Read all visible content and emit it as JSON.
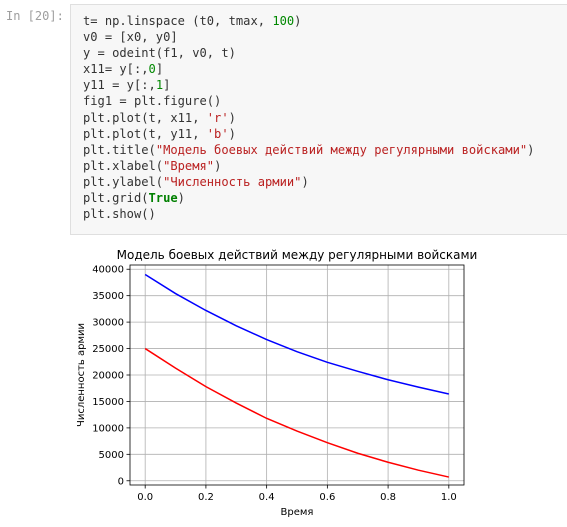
{
  "cell": {
    "prompt": "In [20]:",
    "lines": [
      [
        {
          "t": "t= np.linspace (t0, tmax, "
        },
        {
          "t": "100",
          "c": "num"
        },
        {
          "t": ")"
        }
      ],
      [
        {
          "t": "v0 = [x0, y0]"
        }
      ],
      [
        {
          "t": "y = odeint(f1, v0, t)"
        }
      ],
      [
        {
          "t": "x11= y[:,"
        },
        {
          "t": "0",
          "c": "num"
        },
        {
          "t": "]"
        }
      ],
      [
        {
          "t": "y11 = y[:,"
        },
        {
          "t": "1",
          "c": "num"
        },
        {
          "t": "]"
        }
      ],
      [
        {
          "t": "fig1 = plt.figure()"
        }
      ],
      [
        {
          "t": "plt.plot(t, x11, "
        },
        {
          "t": "'r'",
          "c": "str"
        },
        {
          "t": ")"
        }
      ],
      [
        {
          "t": "plt.plot(t, y11, "
        },
        {
          "t": "'b'",
          "c": "str"
        },
        {
          "t": ")"
        }
      ],
      [
        {
          "t": "plt.title("
        },
        {
          "t": "\"Модель боевых действий между регулярными войсками\"",
          "c": "str"
        },
        {
          "t": ")"
        }
      ],
      [
        {
          "t": "plt.xlabel("
        },
        {
          "t": "\"Время\"",
          "c": "str"
        },
        {
          "t": ")"
        }
      ],
      [
        {
          "t": "plt.ylabel("
        },
        {
          "t": "\"Численность армии\"",
          "c": "str"
        },
        {
          "t": ")"
        }
      ],
      [
        {
          "t": "plt.grid("
        },
        {
          "t": "True",
          "c": "kw"
        },
        {
          "t": ")"
        }
      ],
      [
        {
          "t": "plt.show()"
        }
      ]
    ]
  },
  "chart_data": {
    "type": "line",
    "title": "Модель боевых действий между регулярными войсками",
    "xlabel": "Время",
    "ylabel": "Численность армии",
    "xlim": [
      -0.05,
      1.05
    ],
    "ylim": [
      -800,
      40800
    ],
    "xticks": [
      "0.0",
      "0.2",
      "0.4",
      "0.6",
      "0.8",
      "1.0"
    ],
    "xtick_values": [
      0,
      0.2,
      0.4,
      0.6,
      0.8,
      1.0
    ],
    "yticks": [
      "0",
      "5000",
      "10000",
      "15000",
      "20000",
      "25000",
      "30000",
      "35000",
      "40000"
    ],
    "ytick_values": [
      0,
      5000,
      10000,
      15000,
      20000,
      25000,
      30000,
      35000,
      40000
    ],
    "grid": true,
    "x": [
      0,
      0.1,
      0.2,
      0.3,
      0.4,
      0.5,
      0.6,
      0.7,
      0.8,
      0.9,
      1.0
    ],
    "series": [
      {
        "color": "#ff0000",
        "values": [
          25000,
          21300,
          17800,
          14700,
          11800,
          9400,
          7200,
          5200,
          3500,
          2000,
          700
        ]
      },
      {
        "color": "#0000ff",
        "values": [
          39000,
          35400,
          32200,
          29300,
          26700,
          24400,
          22400,
          20700,
          19100,
          17700,
          16400
        ]
      }
    ]
  }
}
